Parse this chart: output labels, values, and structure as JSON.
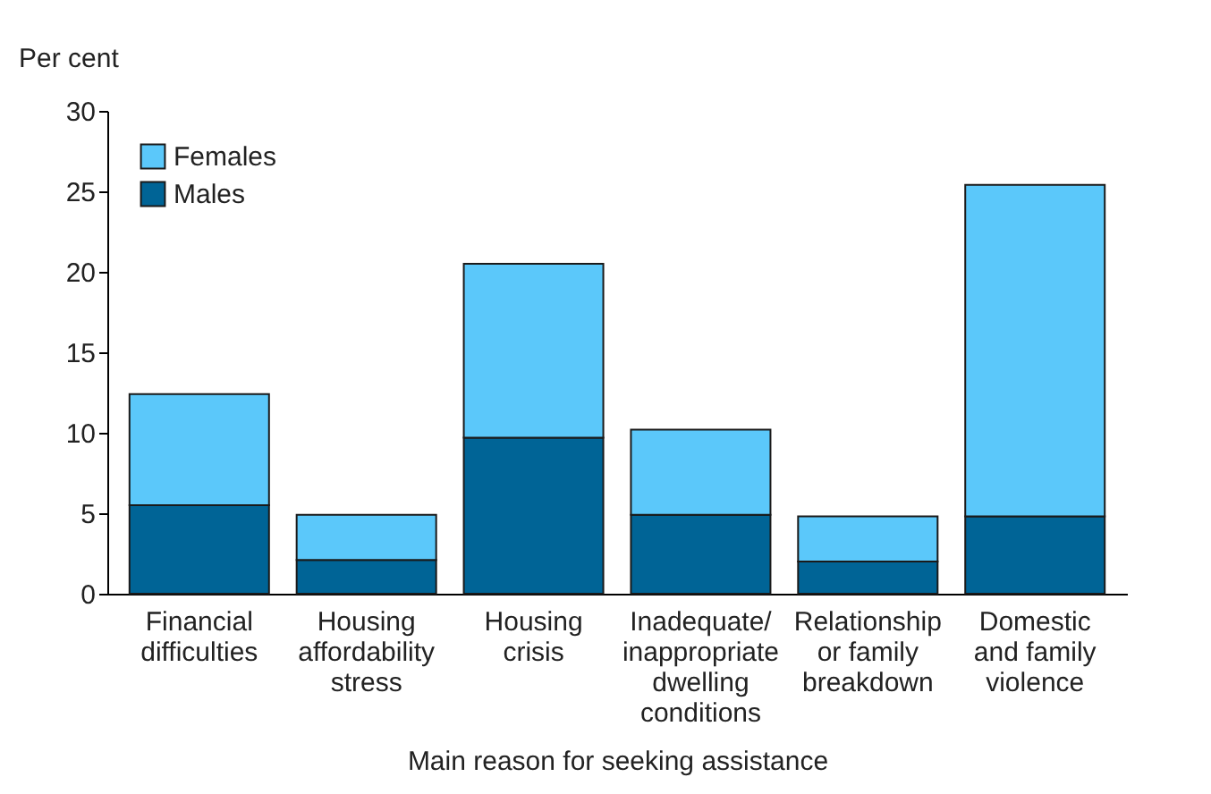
{
  "chart_data": {
    "type": "bar",
    "stacked": true,
    "xlabel": "Main reason for seeking assistance",
    "ylabel": "Per cent",
    "categories": [
      "Financial\ndifficulties",
      "Housing\naffordability\nstress",
      "Housing\ncrisis",
      "Inadequate/\ninappropriate\ndwelling\nconditions",
      "Relationship\nor family\nbreakdown",
      "Domestic\nand family\nviolence"
    ],
    "series": [
      {
        "name": "Males",
        "color": "#006496",
        "values": [
          5.5,
          2.1,
          9.7,
          4.9,
          2.0,
          4.8
        ]
      },
      {
        "name": "Females",
        "color": "#5bc8fa",
        "values": [
          6.9,
          2.8,
          10.8,
          5.3,
          2.8,
          20.6
        ]
      }
    ],
    "ylim": [
      0,
      30
    ],
    "yticks": [
      0,
      5,
      10,
      15,
      20,
      25,
      30
    ],
    "grid": false,
    "legend": "top left"
  }
}
